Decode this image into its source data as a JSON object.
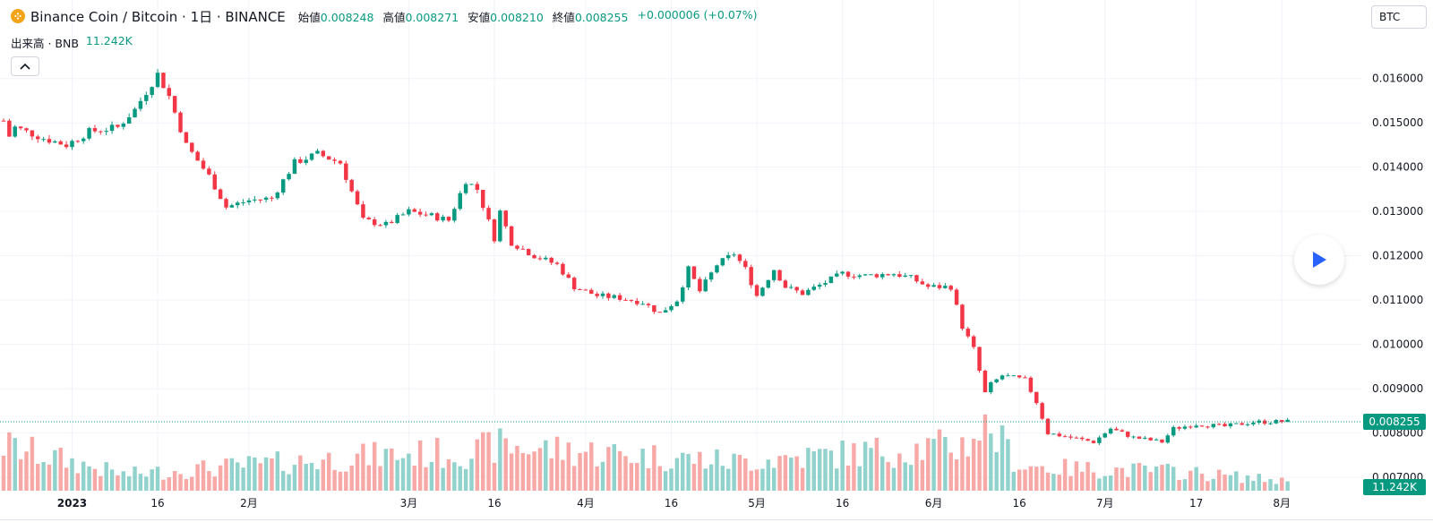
{
  "header": {
    "symbol": "Binance Coin / Bitcoin · 1日 · BINANCE",
    "ohlc": [
      {
        "label": "始値",
        "value": "0.008248"
      },
      {
        "label": "高値",
        "value": "0.008271"
      },
      {
        "label": "安値",
        "value": "0.008210"
      },
      {
        "label": "終値",
        "value": "0.008255"
      }
    ],
    "change": "+0.000006 (+0.07%)"
  },
  "volume_legend": {
    "label": "出来高 · BNB",
    "value": "11.242K"
  },
  "currency_button": "BTC",
  "icons": {
    "coin": "binance-coin-icon",
    "collapse": "chevron-up-icon",
    "play": "play-icon"
  },
  "colors": {
    "up": "#089981",
    "down": "#f23645",
    "vol_up": "#92d2cc",
    "vol_down": "#f7a9a7"
  },
  "chart_data": {
    "type": "candlestick",
    "title": "Binance Coin / Bitcoin · 1日 · BINANCE",
    "price_axis": {
      "ticks": [
        "0.016000",
        "0.015000",
        "0.014000",
        "0.013000",
        "0.012000",
        "0.011000",
        "0.010000",
        "0.009000",
        "0.008000",
        "0.007000"
      ],
      "range": [
        0.0067,
        0.0166
      ]
    },
    "x_axis": {
      "ticks": [
        {
          "label": "2023",
          "bold": true,
          "date": "2023-01-01"
        },
        {
          "label": "16",
          "date": "2023-01-16"
        },
        {
          "label": "2月",
          "date": "2023-02-01"
        },
        {
          "label": "3月",
          "date": "2023-03-01"
        },
        {
          "label": "16",
          "date": "2023-03-16"
        },
        {
          "label": "4月",
          "date": "2023-04-01"
        },
        {
          "label": "16",
          "date": "2023-04-16"
        },
        {
          "label": "5月",
          "date": "2023-05-01"
        },
        {
          "label": "16",
          "date": "2023-05-16"
        },
        {
          "label": "6月",
          "date": "2023-06-01"
        },
        {
          "label": "16",
          "date": "2023-06-16"
        },
        {
          "label": "7月",
          "date": "2023-07-01"
        },
        {
          "label": "17",
          "date": "2023-07-17"
        },
        {
          "label": "8月",
          "date": "2023-08-01"
        }
      ],
      "range": [
        "2022-12-20",
        "2023-08-03"
      ]
    },
    "last_price": "0.008255",
    "last_volume": "11.242K",
    "close_anchors": [
      [
        "2022-12-20",
        0.01505
      ],
      [
        "2022-12-21",
        0.0147
      ],
      [
        "2022-12-22",
        0.0149
      ],
      [
        "2022-12-27",
        0.01465
      ],
      [
        "2022-12-31",
        0.0145
      ],
      [
        "2023-01-04",
        0.0148
      ],
      [
        "2023-01-09",
        0.0149
      ],
      [
        "2023-01-12",
        0.0153
      ],
      [
        "2023-01-16",
        0.0161
      ],
      [
        "2023-01-18",
        0.0156
      ],
      [
        "2023-01-21",
        0.0145
      ],
      [
        "2023-01-25",
        0.0138
      ],
      [
        "2023-01-28",
        0.0131
      ],
      [
        "2023-02-01",
        0.01325
      ],
      [
        "2023-02-05",
        0.0133
      ],
      [
        "2023-02-09",
        0.0141
      ],
      [
        "2023-02-13",
        0.0143
      ],
      [
        "2023-02-17",
        0.0141
      ],
      [
        "2023-02-21",
        0.0128
      ],
      [
        "2023-02-25",
        0.0127
      ],
      [
        "2023-03-01",
        0.013
      ],
      [
        "2023-03-05",
        0.0129
      ],
      [
        "2023-03-08",
        0.0128
      ],
      [
        "2023-03-11",
        0.0137
      ],
      [
        "2023-03-13",
        0.0135
      ],
      [
        "2023-03-16",
        0.0124
      ],
      [
        "2023-03-17",
        0.013
      ],
      [
        "2023-03-19",
        0.0123
      ],
      [
        "2023-03-23",
        0.012
      ],
      [
        "2023-03-27",
        0.0118
      ],
      [
        "2023-03-30",
        0.0113
      ],
      [
        "2023-04-03",
        0.0111
      ],
      [
        "2023-04-07",
        0.01105
      ],
      [
        "2023-04-11",
        0.01095
      ],
      [
        "2023-04-14",
        0.0107
      ],
      [
        "2023-04-17",
        0.011
      ],
      [
        "2023-04-19",
        0.0117
      ],
      [
        "2023-04-21",
        0.0112
      ],
      [
        "2023-04-24",
        0.0118
      ],
      [
        "2023-04-27",
        0.01205
      ],
      [
        "2023-04-29",
        0.0117
      ],
      [
        "2023-05-01",
        0.0111
      ],
      [
        "2023-05-04",
        0.0117
      ],
      [
        "2023-05-06",
        0.0113
      ],
      [
        "2023-05-09",
        0.01115
      ],
      [
        "2023-05-13",
        0.0114
      ],
      [
        "2023-05-16",
        0.0116
      ],
      [
        "2023-05-20",
        0.01155
      ],
      [
        "2023-05-25",
        0.0116
      ],
      [
        "2023-05-28",
        0.0115
      ],
      [
        "2023-05-31",
        0.0113
      ],
      [
        "2023-06-04",
        0.0113
      ],
      [
        "2023-06-06",
        0.0104
      ],
      [
        "2023-06-08",
        0.0099
      ],
      [
        "2023-06-10",
        0.0089
      ],
      [
        "2023-06-11",
        0.0091
      ],
      [
        "2023-06-13",
        0.0093
      ],
      [
        "2023-06-17",
        0.0092
      ],
      [
        "2023-06-19",
        0.0087
      ],
      [
        "2023-06-21",
        0.008
      ],
      [
        "2023-06-25",
        0.0079
      ],
      [
        "2023-06-29",
        0.0078
      ],
      [
        "2023-07-02",
        0.0081
      ],
      [
        "2023-07-06",
        0.0079
      ],
      [
        "2023-07-11",
        0.0078
      ],
      [
        "2023-07-13",
        0.0081
      ],
      [
        "2023-07-17",
        0.0082
      ],
      [
        "2023-07-22",
        0.00815
      ],
      [
        "2023-07-27",
        0.00825
      ],
      [
        "2023-08-02",
        0.00826
      ]
    ],
    "volume_scale_note": "relative heights",
    "volume_profile": [
      [
        "2022-12-20",
        0.7
      ],
      [
        "2023-01-10",
        0.25
      ],
      [
        "2023-02-25",
        0.55
      ],
      [
        "2023-03-13",
        0.6
      ],
      [
        "2023-03-16",
        0.7
      ],
      [
        "2023-04-27",
        0.45
      ],
      [
        "2023-06-06",
        0.7
      ],
      [
        "2023-06-09",
        0.95
      ],
      [
        "2023-06-11",
        0.95
      ],
      [
        "2023-06-16",
        0.4
      ],
      [
        "2023-06-22",
        0.35
      ],
      [
        "2023-07-13",
        0.3
      ],
      [
        "2023-08-02",
        0.15
      ]
    ]
  }
}
